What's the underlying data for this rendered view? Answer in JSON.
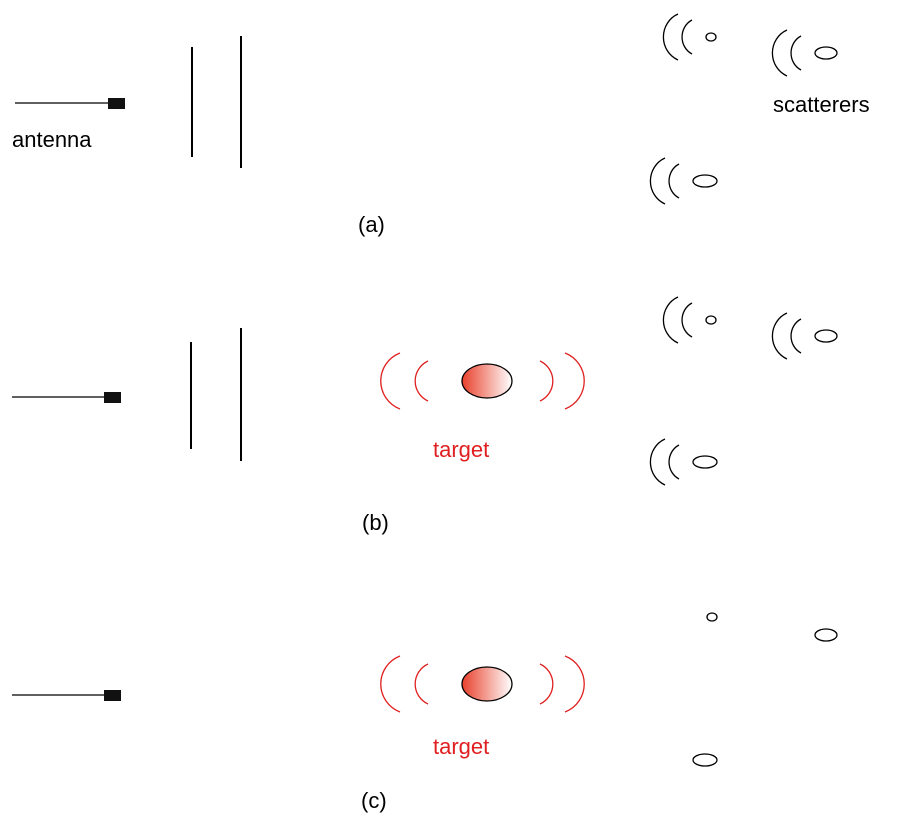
{
  "panels": [
    {
      "label": "(a)",
      "antenna": "antenna",
      "scatterers": "scatterers"
    },
    {
      "label": "(b)",
      "target": "target"
    },
    {
      "label": "(c)",
      "target": "target"
    }
  ]
}
